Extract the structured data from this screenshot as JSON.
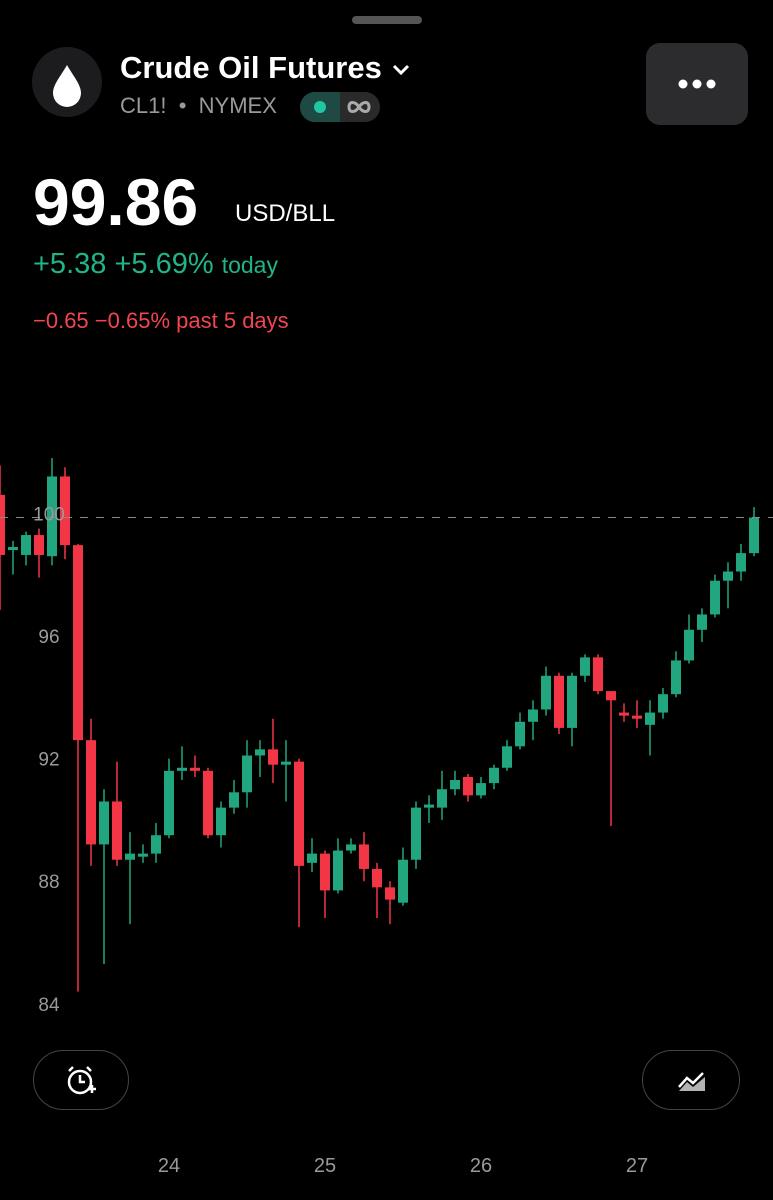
{
  "header": {
    "title": "Crude Oil Futures",
    "symbol": "CL1!",
    "exchange": "NYMEX",
    "price": "99.86",
    "unit": "USD/BLL",
    "change_today": "+5.38",
    "change_today_pct": "+5.69%",
    "today_label": "today",
    "change_5d": "−0.65",
    "change_5d_pct": "−0.65%",
    "five_day_label": "past 5 days"
  },
  "chart_data": {
    "type": "candlestick",
    "categories": [
      null,
      null,
      null,
      null,
      null,
      null,
      null,
      null,
      null,
      null,
      null,
      null,
      null,
      "24",
      null,
      null,
      null,
      null,
      null,
      null,
      null,
      null,
      null,
      null,
      null,
      "25",
      null,
      null,
      null,
      null,
      null,
      null,
      null,
      null,
      null,
      null,
      null,
      "26",
      null,
      null,
      null,
      null,
      null,
      null,
      null,
      null,
      null,
      null,
      null,
      "27",
      null,
      null,
      null,
      null,
      null,
      null,
      null,
      null,
      null
    ],
    "open": [
      100.6,
      98.8,
      98.64,
      99.29,
      98.6,
      101.2,
      98.96,
      92.6,
      89.2,
      90.6,
      88.7,
      88.8,
      88.9,
      89.5,
      91.6,
      91.7,
      91.6,
      89.5,
      90.4,
      90.9,
      92.1,
      92.3,
      91.8,
      91.9,
      88.6,
      88.9,
      87.7,
      89.0,
      89.2,
      88.4,
      87.8,
      87.3,
      88.7,
      90.4,
      90.4,
      91.0,
      91.4,
      90.8,
      91.2,
      91.7,
      92.4,
      93.2,
      93.6,
      94.7,
      93.0,
      94.7,
      95.3,
      94.2,
      93.5,
      93.4,
      93.1,
      93.5,
      94.1,
      95.2,
      96.2,
      96.7,
      97.8,
      98.1,
      98.7
    ],
    "high": [
      101.56,
      99.1,
      99.4,
      99.5,
      101.8,
      101.5,
      99.0,
      93.3,
      91.0,
      91.9,
      89.6,
      89.2,
      89.9,
      92.0,
      92.4,
      92.1,
      91.7,
      90.6,
      91.3,
      92.6,
      92.6,
      93.3,
      92.6,
      92.0,
      89.4,
      89.0,
      89.4,
      89.4,
      89.6,
      88.6,
      88.0,
      89.1,
      90.6,
      90.8,
      91.6,
      91.6,
      91.5,
      91.4,
      91.8,
      92.6,
      93.5,
      93.9,
      95.0,
      94.8,
      94.8,
      95.4,
      95.4,
      94.2,
      93.8,
      93.9,
      93.9,
      94.3,
      95.5,
      96.7,
      96.9,
      98.0,
      98.4,
      99.0,
      100.2
    ],
    "low": [
      96.85,
      98.0,
      98.3,
      97.9,
      98.3,
      98.5,
      84.4,
      88.5,
      85.3,
      88.5,
      86.6,
      88.6,
      88.6,
      89.4,
      91.3,
      91.4,
      89.4,
      89.1,
      90.2,
      90.4,
      91.4,
      91.2,
      90.6,
      86.5,
      88.3,
      86.8,
      87.6,
      88.9,
      88.0,
      86.8,
      86.6,
      87.2,
      88.4,
      89.9,
      90.0,
      90.8,
      90.6,
      90.7,
      91.0,
      91.6,
      92.3,
      92.6,
      93.4,
      92.8,
      92.4,
      94.5,
      94.1,
      89.8,
      93.2,
      93.0,
      92.1,
      93.3,
      94.0,
      95.1,
      95.8,
      96.6,
      96.9,
      97.8,
      98.6
    ],
    "close": [
      98.64,
      98.9,
      99.29,
      98.64,
      101.2,
      98.96,
      92.6,
      89.2,
      90.6,
      88.7,
      88.9,
      88.9,
      89.5,
      91.6,
      91.7,
      91.6,
      89.5,
      90.4,
      90.9,
      92.1,
      92.3,
      91.8,
      91.9,
      88.5,
      88.9,
      87.7,
      89.0,
      89.2,
      88.4,
      87.8,
      87.4,
      88.7,
      90.4,
      90.5,
      91.0,
      91.3,
      90.8,
      91.2,
      91.7,
      92.4,
      93.2,
      93.6,
      94.7,
      93.0,
      94.7,
      95.3,
      94.2,
      93.9,
      93.4,
      93.3,
      93.5,
      94.1,
      95.2,
      96.2,
      96.7,
      97.8,
      98.1,
      98.7,
      99.86
    ],
    "up_color": "#21a67f",
    "down_color": "#f23645",
    "ylim": [
      83.8,
      101.9
    ],
    "yticks": [
      84,
      88,
      92,
      96,
      100
    ]
  }
}
